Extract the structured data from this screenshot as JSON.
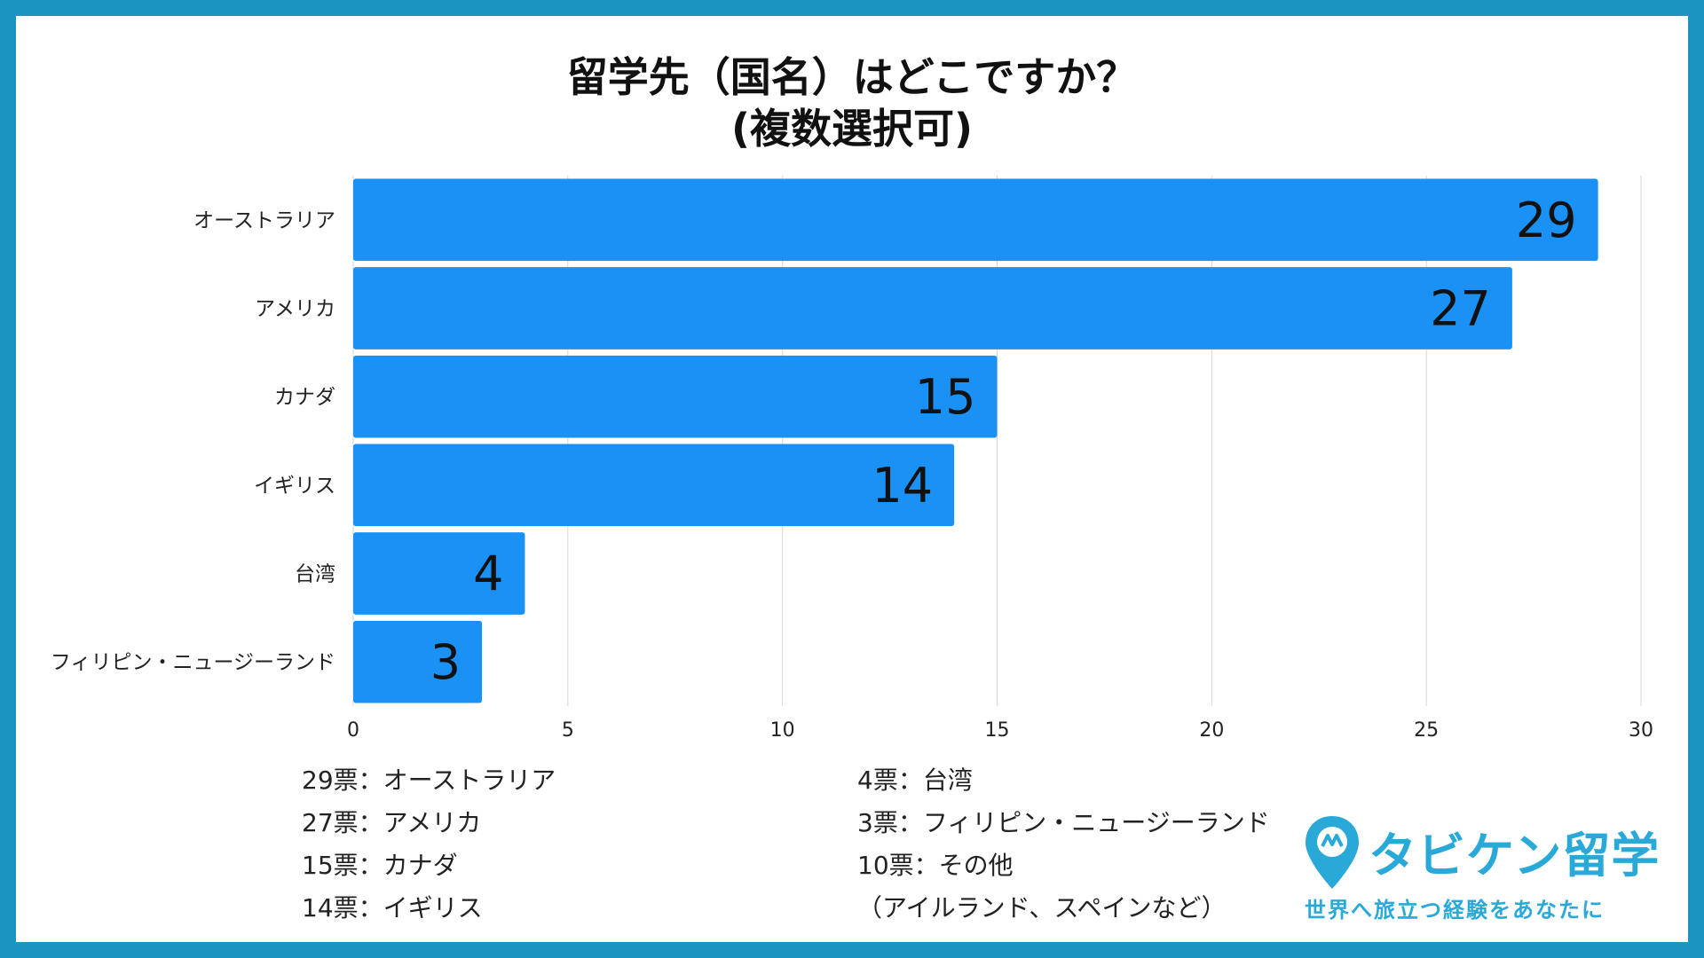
{
  "colors": {
    "frame": "#1b95bf",
    "bar": "#1a92f5",
    "logo": "#29a9d8"
  },
  "chart_data": {
    "type": "bar",
    "orientation": "horizontal",
    "title": "留学先（国名）はどこですか？",
    "subtitle": "(複数選択可)",
    "categories": [
      "オーストラリア",
      "アメリカ",
      "カナダ",
      "イギリス",
      "台湾",
      "フィリピン・ニュージーランド"
    ],
    "values": [
      29,
      27,
      15,
      14,
      4,
      3
    ],
    "value_labels": [
      "29",
      "27",
      "15",
      "14",
      "4",
      "3"
    ],
    "xlim": [
      0,
      30
    ],
    "x_ticks": [
      0,
      5,
      10,
      15,
      20,
      25,
      30
    ],
    "x_tick_labels": [
      "0",
      "5",
      "10",
      "15",
      "20",
      "25",
      "30"
    ],
    "grid": "vertical",
    "legend": false
  },
  "summary": {
    "left": [
      "29票：オーストラリア",
      "27票：アメリカ",
      "15票：カナダ",
      "14票：イギリス"
    ],
    "right": [
      "4票：台湾",
      "3票：フィリピン・ニュージーランド",
      "10票：その他",
      "（アイルランド、スペインなど）"
    ]
  },
  "logo": {
    "icon": "map-pin-icon",
    "name": "タビケン留学",
    "tagline": "世界へ旅立つ経験をあなたに"
  }
}
